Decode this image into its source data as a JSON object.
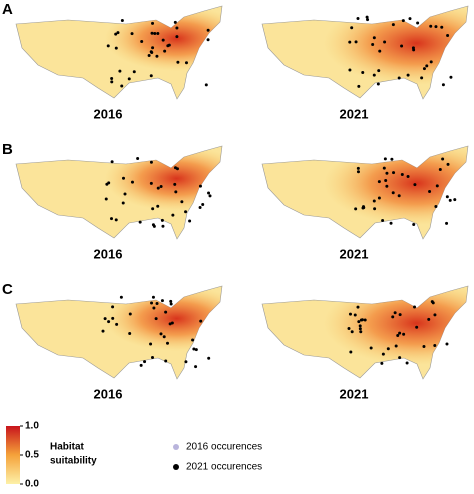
{
  "panels": [
    {
      "label": "A",
      "maps": [
        {
          "year": "2016"
        },
        {
          "year": "2021"
        }
      ]
    },
    {
      "label": "B",
      "maps": [
        {
          "year": "2016"
        },
        {
          "year": "2021"
        }
      ]
    },
    {
      "label": "C",
      "maps": [
        {
          "year": "2016"
        },
        {
          "year": "2021"
        }
      ]
    }
  ],
  "legend": {
    "colorbar": {
      "title_line1": "Habitat",
      "title_line2": "suitability",
      "colors": [
        "#fdf1a8",
        "#f5a23a",
        "#c8141c"
      ],
      "range": [
        0,
        1
      ],
      "ticks": [
        {
          "value": 0,
          "label": "0.0"
        },
        {
          "value": 0.5,
          "label": "0.5"
        },
        {
          "value": 1,
          "label": "1.0"
        }
      ]
    },
    "markers": [
      {
        "label": "2016 occurences",
        "color": "#b9b4dc"
      },
      {
        "label": "2021 occurences",
        "color": "#000000"
      }
    ]
  }
}
